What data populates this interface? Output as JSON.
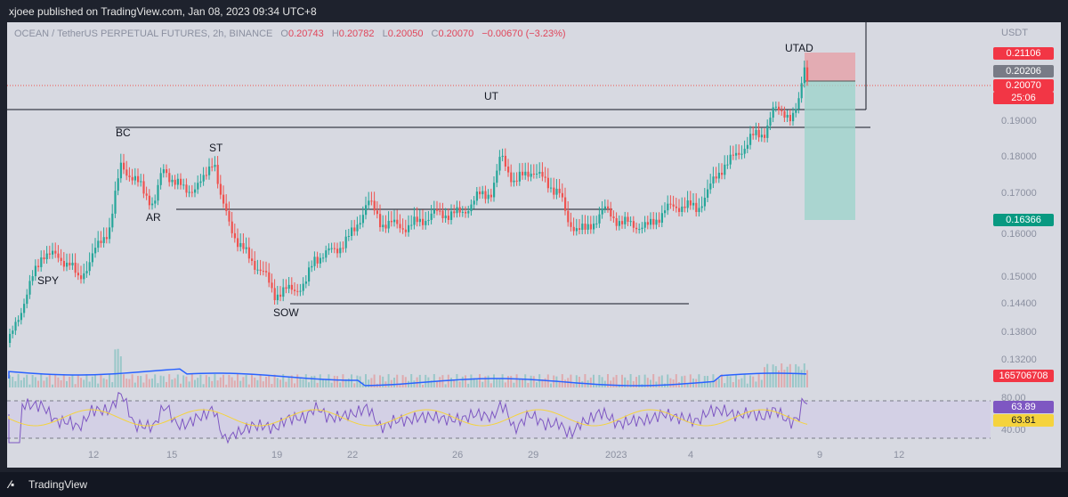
{
  "header": {
    "publish_line": "xjoee published on TradingView.com, Jan 08, 2023 09:34 UTC+8"
  },
  "legend": {
    "symbol": "OCEAN / TetherUS PERPETUAL FUTURES, 2h, BINANCE",
    "o_label": "O",
    "o_value": "0.20743",
    "h_label": "H",
    "h_value": "0.20782",
    "l_label": "L",
    "l_value": "0.20050",
    "c_label": "C",
    "c_value": "0.20070",
    "change": "−0.00670 (−3.23%)"
  },
  "price_axis": {
    "unit": "USDT",
    "ticks": [
      "0.19000",
      "0.18000",
      "0.17000",
      "0.16000",
      "0.15000",
      "0.14400",
      "0.13800",
      "0.13200"
    ],
    "lower_ticks": [
      "80.00",
      "40.00"
    ]
  },
  "price_tags": {
    "target_top": "0.21106",
    "entry": "0.20206",
    "last": "0.20070",
    "countdown": "25:06",
    "target_bottom": "0.16366",
    "volume": "165706708",
    "rsi": "63.89",
    "rsi_ma": "63.81"
  },
  "annotations": {
    "spy": "SPY",
    "bc": "BC",
    "ar": "AR",
    "st": "ST",
    "sow": "SOW",
    "ut": "UT",
    "utad": "UTAD"
  },
  "time_axis": [
    "12",
    "15",
    "19",
    "22",
    "26",
    "29",
    "2023",
    "4",
    "9",
    "12"
  ],
  "footer": {
    "brand": "TradingView"
  },
  "colors": {
    "up": "#26a69a",
    "down": "#ef5350",
    "volume_ma": "#2962ff",
    "rsi": "#7e57c2",
    "rsi_ma": "#f5d33d",
    "loss_zone": "#e6a0a8",
    "profit_zone": "#9fd3cc"
  }
}
